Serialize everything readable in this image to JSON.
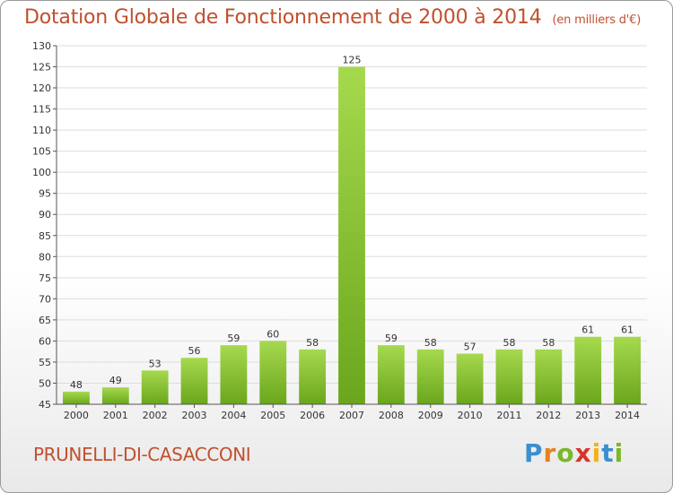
{
  "header": {
    "title": "Dotation Globale de Fonctionnement de 2000 à 2014",
    "unit": "(en milliers d'€)"
  },
  "footer": {
    "commune": "PRUNELLI-DI-CASACCONI",
    "brand": "Proxiti"
  },
  "colors": {
    "title": "#c0502e",
    "bar_light": "#a6d94e",
    "bar_dark": "#6aa61c",
    "grid": "#dddddd",
    "axis": "#555555"
  },
  "chart_data": {
    "type": "bar",
    "title": "Dotation Globale de Fonctionnement de 2000 à 2014",
    "unit": "(en milliers d'€)",
    "xlabel": "",
    "ylabel": "",
    "categories": [
      "2000",
      "2001",
      "2002",
      "2003",
      "2004",
      "2005",
      "2006",
      "2007",
      "2008",
      "2009",
      "2010",
      "2011",
      "2012",
      "2013",
      "2014"
    ],
    "values": [
      48,
      49,
      53,
      56,
      59,
      60,
      58,
      125,
      59,
      58,
      57,
      58,
      58,
      61,
      61
    ],
    "value_labels": [
      "48",
      "49",
      "53",
      "56",
      "59",
      "60",
      "58",
      "125",
      "59",
      "58",
      "57",
      "58",
      "58",
      "61",
      "61"
    ],
    "ylim": [
      45,
      130
    ],
    "yticks": [
      45,
      50,
      55,
      60,
      65,
      70,
      75,
      80,
      85,
      90,
      95,
      100,
      105,
      110,
      115,
      120,
      125,
      130
    ],
    "ytick_labels": [
      "45",
      "50",
      "55",
      "60",
      "65",
      "70",
      "75",
      "80",
      "85",
      "90",
      "95",
      "100",
      "105",
      "110",
      "115",
      "120",
      "125",
      "130"
    ],
    "grid": true,
    "legend": "none"
  }
}
